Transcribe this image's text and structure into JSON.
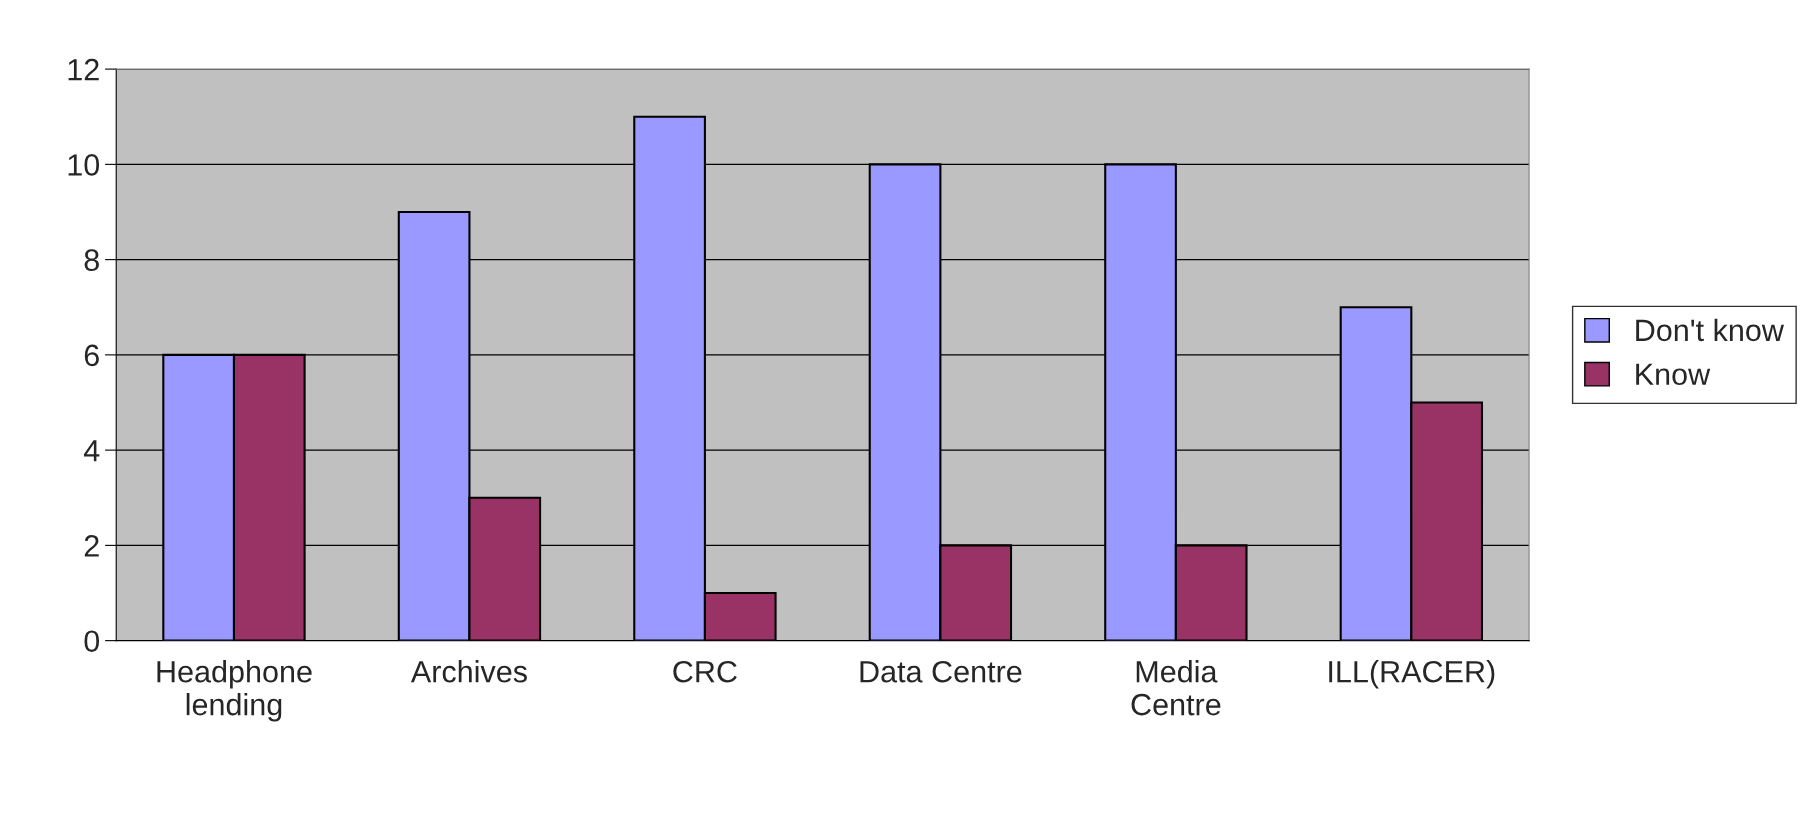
{
  "chart_data": {
    "type": "bar",
    "categories": [
      "Headphone\nlending",
      "Archives",
      "CRC",
      "Data Centre",
      "Media\nCentre",
      "ILL(RACER)"
    ],
    "series": [
      {
        "name": "Don't know",
        "color": "#9999ff",
        "values": [
          6,
          9,
          11,
          10,
          10,
          7
        ]
      },
      {
        "name": "Know",
        "color": "#993366",
        "values": [
          6,
          3,
          1,
          2,
          2,
          5
        ]
      }
    ],
    "ylim": [
      0,
      12
    ],
    "yticks": [
      0,
      2,
      4,
      6,
      8,
      10,
      12
    ],
    "grid": "y",
    "legend": "right"
  }
}
